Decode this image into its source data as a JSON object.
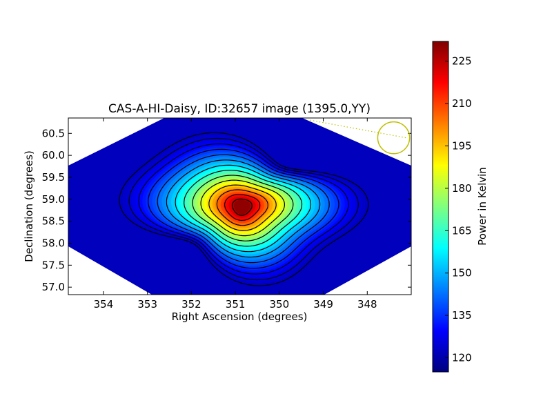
{
  "chart_data": {
    "type": "heatmap",
    "title": "CAS-A-HI-Daisy, ID:32657 image (1395.0,YY)",
    "xlabel": "Right Ascension (degrees)",
    "ylabel": "Declination (degrees)",
    "xlim": [
      354.8,
      347.0
    ],
    "ylim": [
      56.83,
      60.85
    ],
    "x_direction": "decreasing",
    "x_ticks": [
      354,
      353,
      352,
      351,
      350,
      349,
      348
    ],
    "y_ticks": [
      57.0,
      57.5,
      58.0,
      58.5,
      59.0,
      59.5,
      60.0,
      60.5
    ],
    "y_tick_format": "1dp",
    "colormap": "jet",
    "colorbar": {
      "label": "Power in Kelvin",
      "range": [
        115,
        232
      ],
      "ticks": [
        120,
        135,
        150,
        165,
        180,
        195,
        210,
        225
      ]
    },
    "source": {
      "center_ra": 350.85,
      "center_dec": 58.83,
      "peak_kelvin": 230,
      "background_kelvin": 122
    },
    "contour_count": 14,
    "beam_marker": {
      "center_ra": 347.4,
      "center_dec": 60.4,
      "radius_deg": 0.37,
      "color": "#bfbf00"
    },
    "colors": {
      "axes_bg": "#ffffff",
      "contour": "#000000",
      "beam": "#bfbf00"
    }
  }
}
